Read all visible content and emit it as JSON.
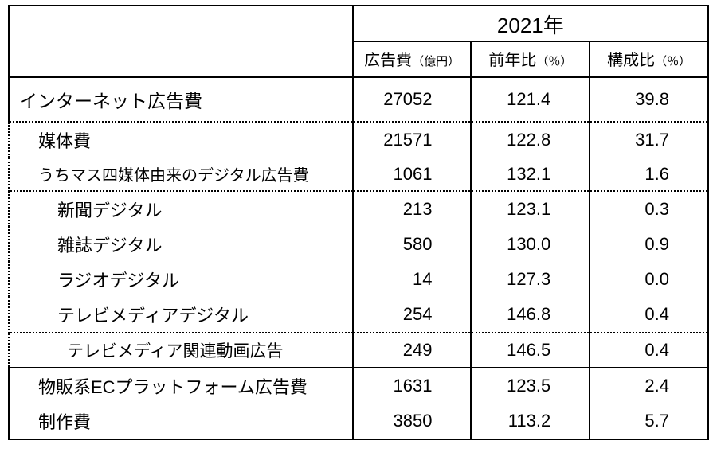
{
  "table": {
    "type": "table",
    "background_color": "#ffffff",
    "text_color": "#000000",
    "border_color": "#000000",
    "font_size_body": 22,
    "font_size_year": 26,
    "font_size_colhdr": 20,
    "font_size_unit": 15,
    "year_header": "2021年",
    "columns": [
      {
        "label": "広告費",
        "unit": "（億円）"
      },
      {
        "label": "前年比",
        "unit": "（％）"
      },
      {
        "label": "構成比",
        "unit": "（％）"
      }
    ],
    "rows": [
      {
        "label": "インターネット広告費",
        "indent": 0,
        "ad": "27052",
        "yoy": "121.4",
        "share": "39.8",
        "border_bottom": "dotted",
        "top": true
      },
      {
        "label": "媒体費",
        "indent": 1,
        "ad": "21571",
        "yoy": "122.8",
        "share": "31.7"
      },
      {
        "label": "うちマス四媒体由来のデジタル広告費",
        "indent": 1,
        "ad": "1061",
        "yoy": "132.1",
        "share": "1.6",
        "border_bottom": "dotted",
        "small": true
      },
      {
        "label": "新聞デジタル",
        "indent": 2,
        "ad": "213",
        "yoy": "123.1",
        "share": "0.3"
      },
      {
        "label": "雑誌デジタル",
        "indent": 2,
        "ad": "580",
        "yoy": "130.0",
        "share": "0.9"
      },
      {
        "label": "ラジオデジタル",
        "indent": 2,
        "ad": "14",
        "yoy": "127.3",
        "share": "0.0"
      },
      {
        "label": "テレビメディアデジタル",
        "indent": 2,
        "ad": "254",
        "yoy": "146.8",
        "share": "0.4",
        "border_bottom": "dotted"
      },
      {
        "label": "テレビメディア関連動画広告",
        "indent": 3,
        "ad": "249",
        "yoy": "146.5",
        "share": "0.4",
        "border_bottom": "solid",
        "tree_end": true
      },
      {
        "label": "物販系ECプラットフォーム広告費",
        "indent": 1,
        "ad": "1631",
        "yoy": "123.5",
        "share": "2.4"
      },
      {
        "label": "制作費",
        "indent": 1,
        "ad": "3850",
        "yoy": "113.2",
        "share": "5.7",
        "last": true
      }
    ]
  }
}
